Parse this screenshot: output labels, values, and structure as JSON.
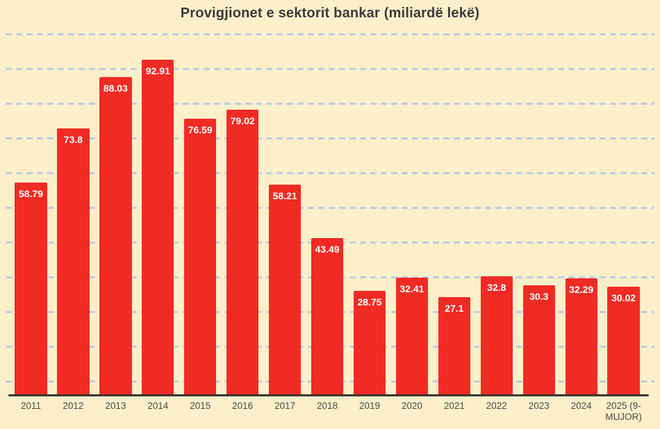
{
  "chart_data": {
    "type": "bar",
    "title": "Provigjionet e sektorit bankar (miliardë lekë)",
    "categories": [
      "2011",
      "2012",
      "2013",
      "2014",
      "2015",
      "2016",
      "2017",
      "2018",
      "2019",
      "2020",
      "2021",
      "2022",
      "2023",
      "2024",
      "2025 (9-MUJOR)"
    ],
    "values": [
      58.79,
      73.8,
      88.03,
      92.91,
      76.59,
      79.02,
      58.21,
      43.49,
      28.75,
      32.41,
      27.1,
      32.8,
      30.3,
      32.29,
      30.02
    ],
    "bar_labels": [
      "58.79",
      "73.8",
      "88.03",
      "92.91",
      "76.59",
      "79.02",
      "58.21",
      "43.49",
      "28.75",
      "32.41",
      "27.1",
      "32.8",
      "30.3",
      "32.29",
      "30.02"
    ],
    "xlabel": "",
    "ylabel": "",
    "ylim": [
      0,
      102
    ],
    "grid": "horizontal-dashed",
    "gridline_count": 11,
    "legend": "none",
    "series_name": "Provigjionet (miliardë lekë)"
  },
  "colors": {
    "background": "#FCEFCA",
    "bar": "#F02B24",
    "bar_label": "#FFFFFF",
    "grid": "#BDCEE0",
    "axis": "#3B3530",
    "title": "#3B3B3B",
    "x_label": "#4A4A45"
  }
}
